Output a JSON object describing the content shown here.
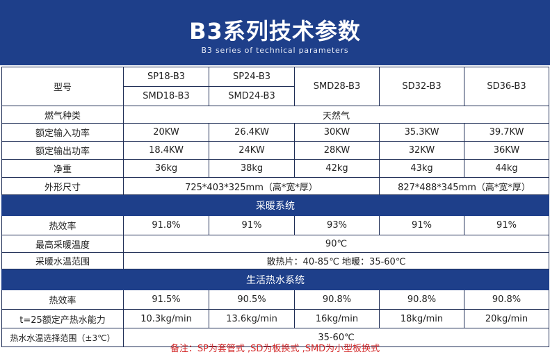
{
  "header": {
    "title": "B3系列技术参数",
    "subtitle": "B3 series of technical parameters"
  },
  "table": {
    "model_label": "型号",
    "models_top": [
      "SP18-B3",
      "SP24-B3"
    ],
    "models_bottom": [
      "SMD18-B3",
      "SMD24-B3"
    ],
    "models_single": [
      "SMD28-B3",
      "SD32-B3",
      "SD36-B3"
    ],
    "gas_label": "燃气种类",
    "gas_value": "天然气",
    "rated_input_label": "额定输入功率",
    "rated_input": [
      "20KW",
      "26.4KW",
      "30KW",
      "35.3KW",
      "39.7KW"
    ],
    "rated_output_label": "额定输出功率",
    "rated_output": [
      "18.4KW",
      "24KW",
      "28KW",
      "32KW",
      "36KW"
    ],
    "net_weight_label": "净重",
    "net_weight": [
      "36kg",
      "38kg",
      "42kg",
      "43kg",
      "44kg"
    ],
    "dimensions_label": "外形尺寸",
    "dimensions": [
      "725*403*325mm（高*宽*厚）",
      "827*488*345mm（高*宽*厚）"
    ],
    "heating_section": "采暖系统",
    "heating_eff_label": "热效率",
    "heating_eff": [
      "91.8%",
      "91%",
      "93%",
      "91%",
      "91%"
    ],
    "max_heating_temp_label": "最高采暖温度",
    "max_heating_temp": "90℃",
    "heating_water_range_label": "采暖水温范围",
    "heating_water_range": "散热片：40-85℃  地暖：35-60℃",
    "hot_water_section": "生活热水系统",
    "dhw_eff_label": "热效率",
    "dhw_eff": [
      "91.5%",
      "90.5%",
      "90.8%",
      "90.8%",
      "90.8%"
    ],
    "dhw_capacity_label": "t=25额定产热水能力",
    "dhw_capacity": [
      "10.3kg/min",
      "13.6kg/min",
      "16kg/min",
      "18kg/min",
      "20kg/min"
    ],
    "dhw_range_label": "热水水温选择范围（±3℃）",
    "dhw_range": "35-60℃"
  },
  "note": "备注：SP为套管式 ,SD为板换式 ,SMD为小型板换式"
}
